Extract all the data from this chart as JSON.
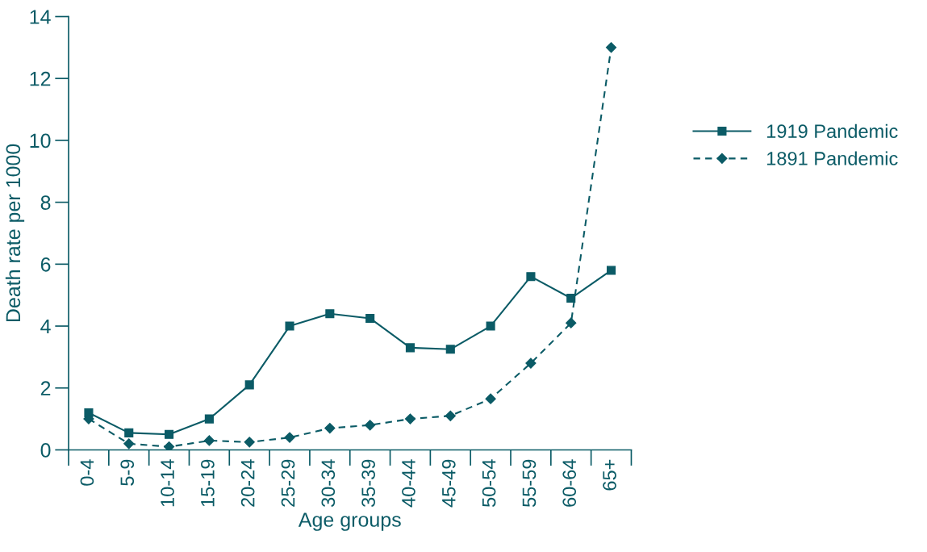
{
  "chart_data": {
    "type": "line",
    "xlabel": "Age groups",
    "ylabel": "Death rate per 1000",
    "categories": [
      "0-4",
      "5-9",
      "10-14",
      "15-19",
      "20-24",
      "25-29",
      "30-34",
      "35-39",
      "40-44",
      "45-49",
      "50-54",
      "55-59",
      "60-64",
      "65+"
    ],
    "series": [
      {
        "name": "1919 Pandemic",
        "color": "#0b5b66",
        "marker": "square",
        "line_style": "solid",
        "values": [
          1.2,
          0.55,
          0.5,
          1.0,
          2.1,
          4.0,
          4.4,
          4.25,
          3.3,
          3.25,
          4.0,
          5.6,
          4.9,
          5.8
        ]
      },
      {
        "name": "1891 Pandemic",
        "color": "#0b5b66",
        "marker": "diamond",
        "line_style": "dashed",
        "values": [
          1.0,
          0.2,
          0.1,
          0.3,
          0.25,
          0.4,
          0.7,
          0.8,
          1.0,
          1.1,
          1.65,
          2.8,
          4.1,
          13.0
        ]
      }
    ],
    "ylim": [
      0,
      14
    ],
    "yticks": [
      0,
      2,
      4,
      6,
      8,
      10,
      12,
      14
    ],
    "grid": false,
    "legend": "right"
  }
}
